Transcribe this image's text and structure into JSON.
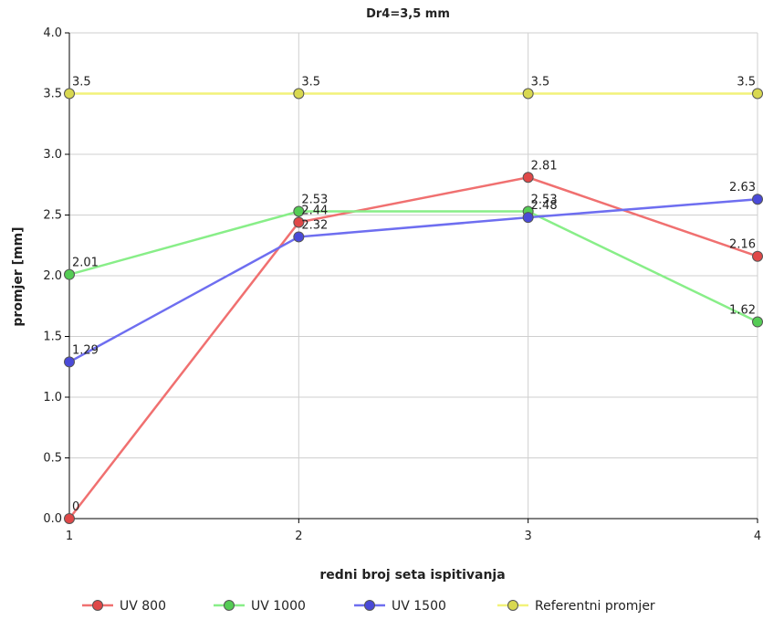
{
  "chart_data": {
    "type": "line",
    "title": "Dr4=3,5 mm",
    "xlabel": "redni broj seta ispitivanja",
    "ylabel": "promjer [mm]",
    "x": [
      1,
      2,
      3,
      4
    ],
    "xlim": [
      1,
      4
    ],
    "ylim": [
      0,
      4
    ],
    "yticks": [
      "0.0",
      "0.5",
      "1.0",
      "1.5",
      "2.0",
      "2.5",
      "3.0",
      "3.5",
      "4.0"
    ],
    "xticks": [
      "1",
      "2",
      "3",
      "4"
    ],
    "grid": true,
    "legend_position": "bottom",
    "series": [
      {
        "name": "UV 800",
        "values": [
          0,
          2.44,
          2.81,
          2.16
        ],
        "labels": [
          "0",
          "2.44",
          "2.81",
          "2.16"
        ],
        "line_color": "#f07070",
        "marker_color": "#e04848"
      },
      {
        "name": "UV 1000",
        "values": [
          2.01,
          2.53,
          2.53,
          1.62
        ],
        "labels": [
          "2.01",
          "2.53",
          "2.53",
          "1.62"
        ],
        "line_color": "#88ee88",
        "marker_color": "#55cc55"
      },
      {
        "name": "UV 1500",
        "values": [
          1.29,
          2.32,
          2.48,
          2.63
        ],
        "labels": [
          "1.29",
          "2.32",
          "2.48",
          "2.63"
        ],
        "line_color": "#6e6ef0",
        "marker_color": "#4a4ad8"
      },
      {
        "name": "Referentni promjer",
        "values": [
          3.5,
          3.5,
          3.5,
          3.5
        ],
        "labels": [
          "3.5",
          "3.5",
          "3.5",
          "3.5"
        ],
        "line_color": "#f2f27a",
        "marker_color": "#d8d850"
      }
    ]
  }
}
